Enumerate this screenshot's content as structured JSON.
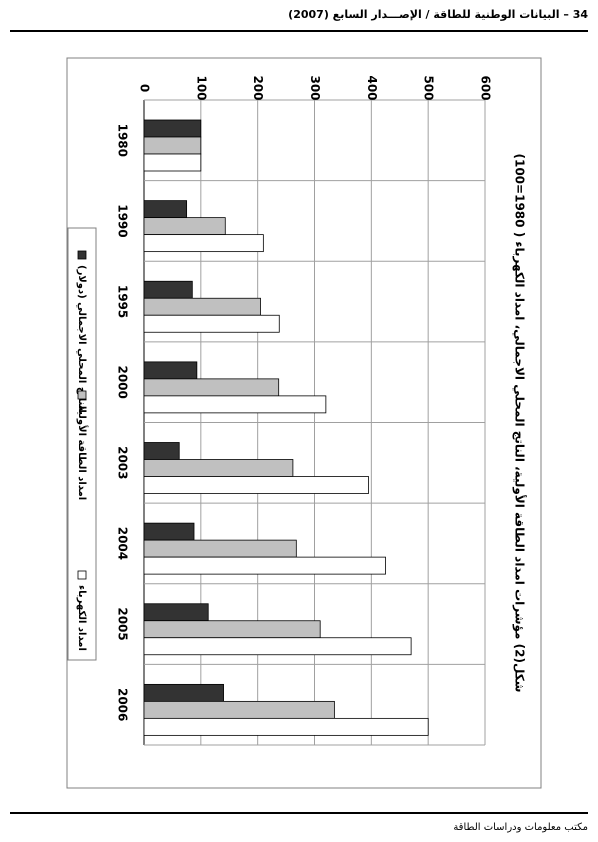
{
  "header": {
    "text": "34 – البيانات الوطنية للطاقة / الإصـــدار السابع (2007)"
  },
  "footer": {
    "text": "مكتب معلومات ودراسات الطاقة"
  },
  "chart_data": {
    "type": "bar",
    "orientation": "horizontal",
    "title": "شكل(2) مؤشرات امداد الطاقة الأولية، الناتج المحلي الاجمالي، امداد الكهرباء ( 1980=100)",
    "categories": [
      "1980",
      "1990",
      "1995",
      "2000",
      "2003",
      "2004",
      "2005",
      "2006"
    ],
    "series": [
      {
        "name": "الناتج المحلي الاجمالي (دولار)",
        "color": "#333333",
        "values": [
          100,
          75,
          85,
          93,
          62,
          88,
          113,
          140
        ]
      },
      {
        "name": "امداد الطاقة الأولية",
        "color": "#c0c0c0",
        "values": [
          100,
          143,
          205,
          237,
          262,
          268,
          310,
          335
        ]
      },
      {
        "name": "امداد الكهرباء",
        "color": "#ffffff",
        "values": [
          100,
          210,
          238,
          320,
          395,
          425,
          470,
          500
        ]
      }
    ],
    "value_axis": {
      "min": 0,
      "max": 600,
      "ticks": [
        0,
        100,
        200,
        300,
        400,
        500,
        600
      ]
    },
    "grid": true,
    "legend_position": "bottom"
  }
}
